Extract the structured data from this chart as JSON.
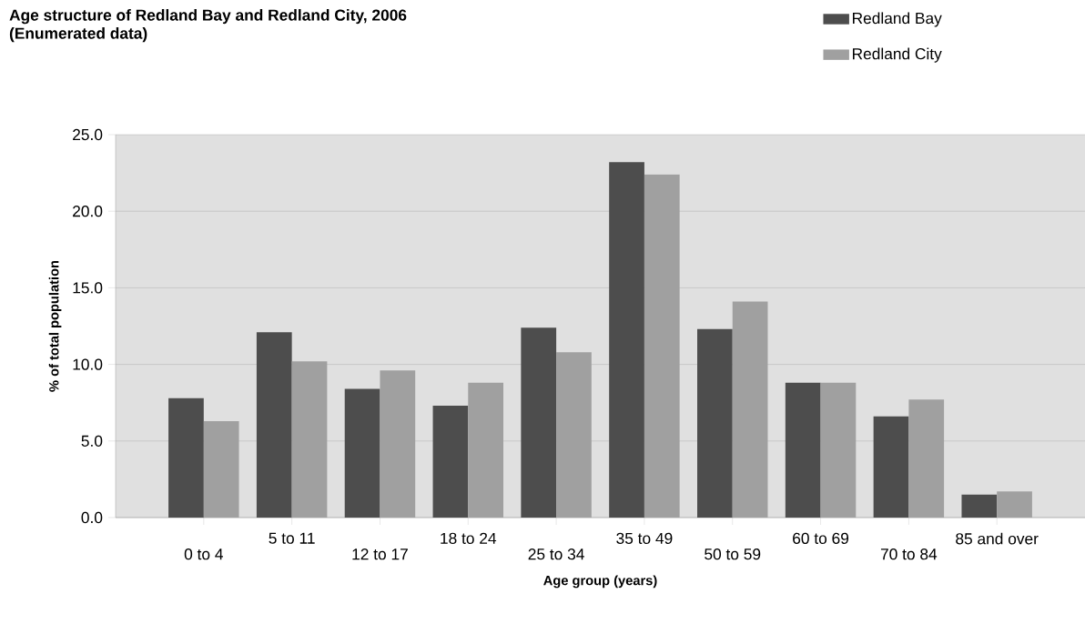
{
  "chart_data": {
    "type": "bar",
    "title": "Age structure of Redland Bay and Redland City, 2006",
    "subtitle": "(Enumerated data)",
    "xlabel": "Age group (years)",
    "ylabel": "% of total population",
    "categories": [
      "0 to 4",
      "5 to 11",
      "12 to 17",
      "18 to 24",
      "25 to 34",
      "35 to 49",
      "50 to 59",
      "60 to 69",
      "70 to 84",
      "85 and over"
    ],
    "series": [
      {
        "name": "Redland Bay",
        "color": "#4d4d4d",
        "values": [
          7.8,
          12.1,
          8.4,
          7.3,
          12.4,
          23.2,
          12.3,
          8.8,
          6.6,
          1.5
        ]
      },
      {
        "name": "Redland City",
        "color": "#a0a0a0",
        "values": [
          6.3,
          10.2,
          9.6,
          8.8,
          10.8,
          22.4,
          14.1,
          8.8,
          7.7,
          1.7
        ]
      }
    ],
    "ylim": [
      0,
      25
    ],
    "yticks": [
      {
        "value": 0,
        "label": "0.0"
      },
      {
        "value": 5,
        "label": "5.0"
      },
      {
        "value": 10,
        "label": "10.0"
      },
      {
        "value": 15,
        "label": "15.0"
      },
      {
        "value": 20,
        "label": "20.0"
      },
      {
        "value": 25,
        "label": "25.0"
      }
    ],
    "grid": "y",
    "legend": "top right"
  }
}
